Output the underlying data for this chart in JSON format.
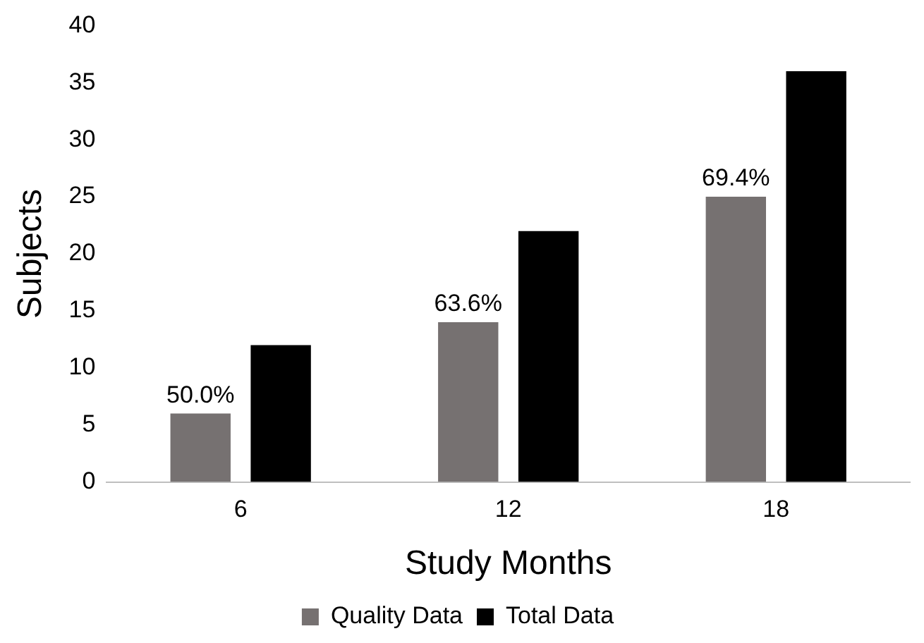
{
  "chart_data": {
    "type": "bar",
    "xlabel": "Study Months",
    "ylabel": "Subjects",
    "categories": [
      "6",
      "12",
      "18"
    ],
    "series": [
      {
        "name": "Quality Data",
        "color": "#767171",
        "values": [
          6,
          14,
          25
        ]
      },
      {
        "name": "Total Data",
        "color": "#000000",
        "values": [
          12,
          22,
          36
        ]
      }
    ],
    "annotations": [
      "50.0%",
      "63.6%",
      "69.4%"
    ],
    "ylim": [
      0,
      40
    ],
    "yticks": [
      0,
      5,
      10,
      15,
      20,
      25,
      30,
      35,
      40
    ],
    "grid": false,
    "legend": "bottom"
  }
}
